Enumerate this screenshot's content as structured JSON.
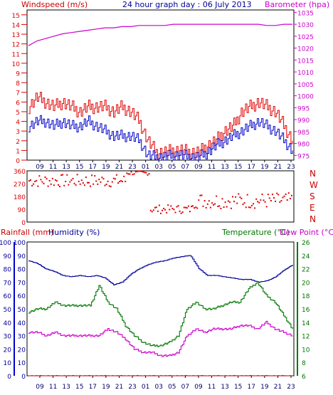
{
  "colors": {
    "windspeed": "#e00000",
    "gust": "#e00000",
    "avg": "#0000c8",
    "barometer": "#cc00cc",
    "direction": "#e00000",
    "rainfall": "#cc0000",
    "humidity": "#000099",
    "temperature": "#007700",
    "dewpoint": "#cc00cc",
    "frame": "#000000"
  },
  "top": {
    "left_label": "Windspeed (m/s)",
    "title": "24 hour graph day : 06 July 2013",
    "right_label": "Barometer (hpa)"
  },
  "direction_labels": [
    "N",
    "W",
    "S",
    "E",
    "N"
  ],
  "bottom": {
    "rain_label": "Rainfall (mm)",
    "humidity_label": "Humidity (%)",
    "temp_label": "Temperature (°C)",
    "dew_label": "Dew Point (°C)"
  },
  "chart_data": [
    {
      "type": "line",
      "panel": "wind",
      "x_ticks": [
        "09",
        "11",
        "13",
        "15",
        "17",
        "19",
        "21",
        "23",
        "01",
        "03",
        "05",
        "07",
        "09",
        "11",
        "13",
        "15",
        "17",
        "19",
        "21",
        "23"
      ],
      "y_ticks_left": [
        "0",
        "1",
        "2",
        "3",
        "4",
        "5",
        "6",
        "7",
        "8",
        "9",
        "10",
        "11",
        "12",
        "13",
        "14",
        "15"
      ],
      "y_ticks_right": [
        "975",
        "980",
        "985",
        "990",
        "995",
        "1000",
        "1005",
        "1010",
        "1015",
        "1020",
        "1025",
        "1030",
        "1035"
      ],
      "ylim_left": [
        0,
        15.5
      ],
      "ylim_right": [
        973,
        1036
      ],
      "series": [
        {
          "key": "gust",
          "axis": "left",
          "values": [
            5.5,
            6.5,
            6.0,
            5.5,
            6.0,
            5.5,
            5.0,
            5.5,
            5.5,
            5.5,
            5.0,
            5.5,
            5.0,
            4.0,
            2.0,
            0.8,
            0.8,
            1.0,
            1.0,
            0.8,
            0.8,
            1.5,
            2.0,
            3.0,
            3.5,
            5.0,
            5.5,
            6.0,
            5.5,
            5.0,
            3.5,
            2.0
          ]
        },
        {
          "key": "avg",
          "axis": "left",
          "values": [
            3.5,
            4.0,
            4.0,
            3.5,
            4.0,
            3.5,
            3.5,
            4.0,
            3.5,
            3.0,
            2.5,
            2.5,
            2.5,
            2.0,
            0.5,
            0.3,
            0.3,
            0.5,
            0.5,
            0.3,
            0.3,
            0.8,
            1.5,
            2.0,
            2.5,
            3.0,
            3.5,
            4.0,
            3.5,
            3.0,
            2.0,
            1.0
          ]
        },
        {
          "key": "barometer",
          "axis": "right",
          "values": [
            1021,
            1023,
            1024,
            1025,
            1026,
            1026.5,
            1027,
            1027.5,
            1028,
            1028.5,
            1028.5,
            1029,
            1029,
            1029.5,
            1029.5,
            1029.5,
            1029.5,
            1030,
            1030,
            1030,
            1030,
            1030,
            1030,
            1030,
            1030,
            1030,
            1030,
            1030,
            1029.5,
            1029.5,
            1030,
            1030
          ]
        }
      ]
    },
    {
      "type": "scatter",
      "panel": "direction",
      "y_ticks": [
        "0",
        "90",
        "180",
        "270",
        "360"
      ],
      "ylim": [
        0,
        360
      ],
      "groups": [
        {
          "from": 0,
          "to": 0.37,
          "center": 290,
          "spread": 45
        },
        {
          "from": 0.37,
          "to": 0.46,
          "center": 345,
          "spread": 15
        },
        {
          "from": 0.46,
          "to": 0.62,
          "center": 90,
          "spread": 30
        },
        {
          "from": 0.62,
          "to": 1.0,
          "center": 150,
          "spread": 55
        }
      ]
    },
    {
      "type": "line",
      "panel": "temp",
      "y_ticks_left": [
        "0",
        "10",
        "20",
        "30",
        "40",
        "50",
        "60",
        "70",
        "80",
        "90",
        "100"
      ],
      "y_ticks_right": [
        "6",
        "8",
        "10",
        "12",
        "14",
        "16",
        "18",
        "20",
        "22",
        "24",
        "26"
      ],
      "ylim_left": [
        0,
        100
      ],
      "ylim_right": [
        6,
        26
      ],
      "series": [
        {
          "key": "humidity",
          "axis": "left",
          "values": [
            86,
            84,
            80,
            78,
            75,
            74,
            75,
            74,
            75,
            73,
            68,
            70,
            76,
            80,
            83,
            85,
            86,
            88,
            89,
            90,
            80,
            75,
            75,
            74,
            73,
            72,
            72,
            70,
            71,
            74,
            79,
            83
          ]
        },
        {
          "key": "temperature",
          "axis": "right",
          "values": [
            15.5,
            16,
            16,
            17,
            16.5,
            16.5,
            16.5,
            16.5,
            19.5,
            17,
            16,
            13.5,
            12,
            11,
            10.5,
            10.5,
            11,
            12,
            16,
            17,
            16,
            16,
            16.5,
            17,
            17,
            19,
            20,
            18,
            17,
            15,
            13
          ]
        },
        {
          "key": "dewpoint",
          "axis": "right",
          "values": [
            12.5,
            12.5,
            12,
            12.5,
            12,
            12,
            12,
            12,
            12,
            13,
            12.5,
            11.5,
            10,
            9.5,
            9.5,
            9,
            9,
            9.5,
            12,
            13,
            12.5,
            13,
            13,
            13,
            13.5,
            13.5,
            13,
            14,
            13,
            12.5,
            12
          ]
        },
        {
          "key": "rainfall",
          "axis": "left",
          "values": [
            0,
            0,
            0,
            0,
            0,
            0,
            0,
            0,
            0,
            0,
            0,
            0,
            0,
            0,
            0,
            0,
            0,
            0,
            0,
            0,
            0,
            0,
            0,
            0,
            0,
            0,
            0,
            0,
            0,
            0,
            0
          ]
        }
      ]
    }
  ]
}
